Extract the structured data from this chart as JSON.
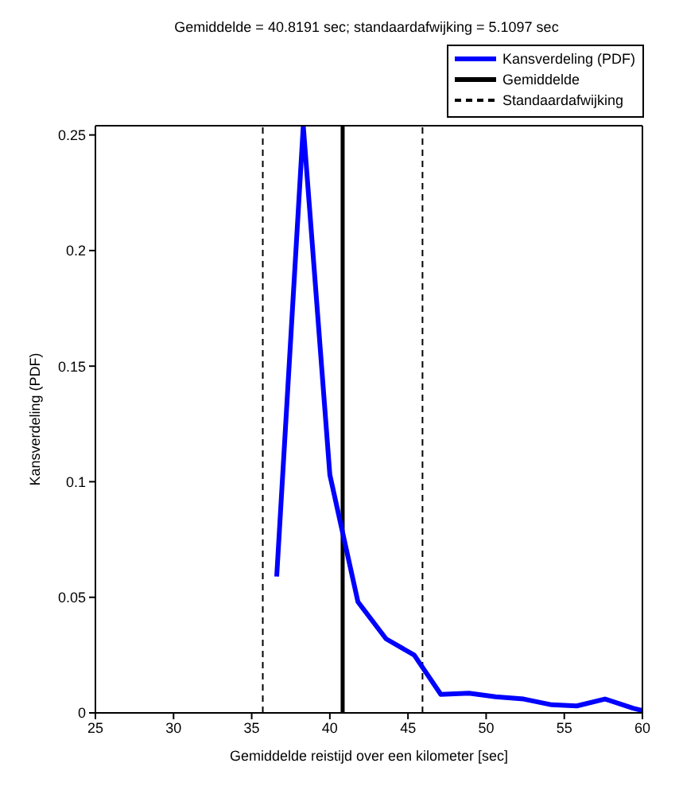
{
  "chart_data": {
    "type": "line",
    "title": "Gemiddelde = 40.8191 sec; standaardafwijking = 5.1097 sec",
    "xlabel": "Gemiddelde reistijd over een kilometer [sec]",
    "ylabel": "Kansverdeling (PDF)",
    "x": [
      36.6,
      38.3,
      40.0,
      41.8,
      43.6,
      45.4,
      47.1,
      48.9,
      50.6,
      52.4,
      54.2,
      55.8,
      57.6,
      59.4,
      60
    ],
    "series": [
      {
        "name": "Kansverdeling (PDF)",
        "color": "#0000ff",
        "values": [
          0.059,
          0.254,
          0.103,
          0.048,
          0.032,
          0.025,
          0.008,
          0.0085,
          0.007,
          0.006,
          0.0035,
          0.003,
          0.006,
          0.002,
          0.001
        ]
      }
    ],
    "xlim": [
      25,
      60
    ],
    "xticks": [
      25,
      30,
      35,
      40,
      45,
      50,
      55,
      60
    ],
    "ylim": [
      0,
      0.254
    ],
    "yticks": [
      0,
      0.05,
      0.1,
      0.15,
      0.2,
      0.25
    ],
    "ref_lines": [
      {
        "axis": "x",
        "value": 40.8191,
        "label": "Gemiddelde",
        "color": "#000000",
        "line_style": "solid"
      },
      {
        "axis": "x",
        "value": 35.7094,
        "label": "Standaardafwijking",
        "color": "#000000",
        "line_style": "dashed"
      },
      {
        "axis": "x",
        "value": 45.9288,
        "label": null,
        "color": "#000000",
        "line_style": "dashed"
      }
    ],
    "legend": "top right",
    "grid": false,
    "marker": "none",
    "line_style": "solid"
  }
}
